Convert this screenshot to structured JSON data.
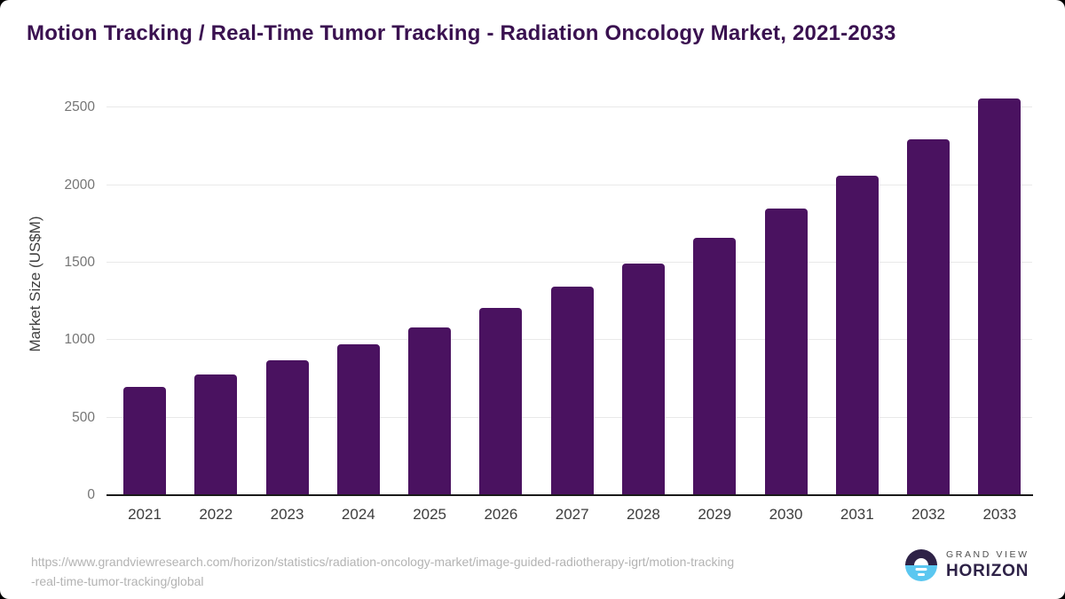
{
  "title": "Motion Tracking / Real-Time Tumor Tracking - Radiation Oncology Market, 2021-2033",
  "chart_data": {
    "type": "bar",
    "categories": [
      "2021",
      "2022",
      "2023",
      "2024",
      "2025",
      "2026",
      "2027",
      "2028",
      "2029",
      "2030",
      "2031",
      "2032",
      "2033"
    ],
    "values": [
      695,
      775,
      865,
      965,
      1075,
      1200,
      1340,
      1485,
      1655,
      1845,
      2055,
      2290,
      2550
    ],
    "title": "Motion Tracking / Real-Time Tumor Tracking - Radiation Oncology Market, 2021-2033",
    "xlabel": "",
    "ylabel": "Market Size (US$M)",
    "ylim": [
      0,
      2500
    ],
    "yticks": [
      0,
      500,
      1000,
      1500,
      2000,
      2500
    ],
    "grid": true,
    "legend": "none",
    "bar_color": "#4a1260"
  },
  "colors": {
    "bar": "#4a1260",
    "title": "#3a1150",
    "gridline": "#e9e9e9",
    "axis_line": "#1a1a1a",
    "logo_dark": "#2e2247",
    "logo_blue": "#5bc7f0"
  },
  "footer": {
    "source_url_line1": "https://www.grandviewresearch.com/horizon/statistics/radiation-oncology-market/image-guided-radiotherapy-igrt/motion-tracking",
    "source_url_line2": "-real-time-tumor-tracking/global"
  },
  "logo": {
    "line1": "GRAND VIEW",
    "line2": "HORIZON"
  }
}
